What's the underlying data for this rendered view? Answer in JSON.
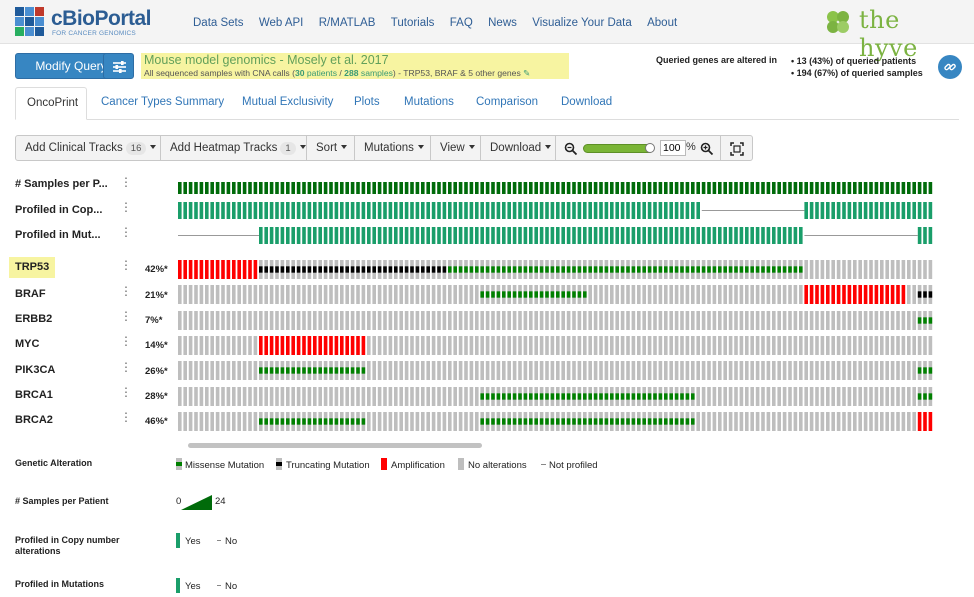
{
  "header": {
    "logo_name": "cBioPortal",
    "logo_sub": "FOR CANCER GENOMICS",
    "nav": [
      "Data Sets",
      "Web API",
      "R/MATLAB",
      "Tutorials",
      "FAQ",
      "News",
      "Visualize Your Data",
      "About"
    ],
    "partner": "the hyve"
  },
  "query": {
    "modify_label": "Modify Query",
    "study_title": "Mouse model genomics - Mosely et al. 2017",
    "samples_prefix": "All sequenced samples with CNA calls (",
    "patients_count": "30",
    "patients_word": "patients",
    "samples_count": "288",
    "samples_word": "samples",
    "samples_suffix": ")  - TRP53, BRAF & 5 other genes",
    "queried_label": "Queried genes are altered in",
    "queried_patients": "• 13 (43%) of queried patients",
    "queried_samples": "• 194 (67%) of queried samples"
  },
  "tabs": [
    "OncoPrint",
    "Cancer Types Summary",
    "Mutual Exclusivity",
    "Plots",
    "Mutations",
    "Comparison",
    "Download"
  ],
  "toolbar": {
    "add_clinical": "Add Clinical Tracks",
    "add_clinical_count": "16",
    "add_heatmap": "Add Heatmap Tracks",
    "add_heatmap_count": "1",
    "sort": "Sort",
    "mutations": "Mutations",
    "view": "View",
    "download": "Download",
    "zoom_value": "100",
    "zoom_unit": "%"
  },
  "clinical_tracks": [
    "# Samples per P...",
    "Profiled in Cop...",
    "Profiled in Mut..."
  ],
  "genes": [
    {
      "name": "TRP53",
      "pct": "42%*"
    },
    {
      "name": "BRAF",
      "pct": "21%*"
    },
    {
      "name": "ERBB2",
      "pct": "7%*"
    },
    {
      "name": "MYC",
      "pct": "14%*"
    },
    {
      "name": "PIK3CA",
      "pct": "26%*"
    },
    {
      "name": "BRCA1",
      "pct": "28%*"
    },
    {
      "name": "BRCA2",
      "pct": "46%*"
    }
  ],
  "legend": {
    "genetic_title": "Genetic Alteration",
    "missense": "Missense Mutation",
    "truncating": "Truncating Mutation",
    "amplification": "Amplification",
    "no_alt": "No alterations",
    "not_profiled": "Not profiled",
    "samples_title": "# Samples per Patient",
    "samples_min": "0",
    "samples_max": "24",
    "cna_title": "Profiled in Copy number alterations",
    "mut_title": "Profiled in Mutations",
    "yes": "Yes",
    "no": "No"
  },
  "colors": {
    "accent": "#3786c2",
    "missense": "#008000",
    "truncating": "#000000",
    "amplification": "#ff0000",
    "no_alteration": "#bebebe",
    "profiled": "#1a9e6a",
    "samples_bar": "#006b0a"
  }
}
